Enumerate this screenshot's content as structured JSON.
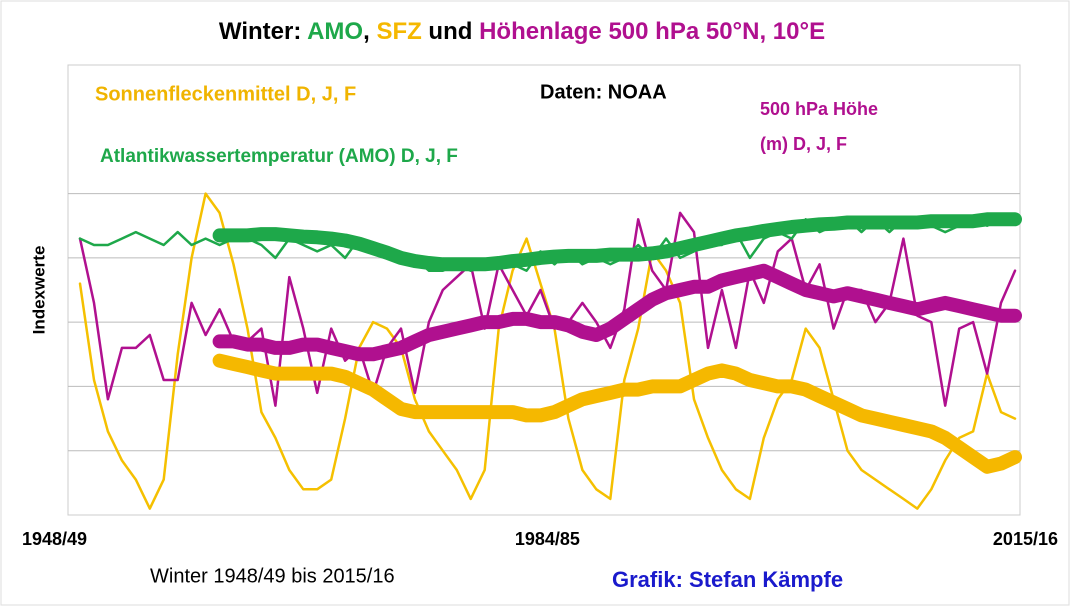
{
  "chart_data": {
    "type": "line",
    "title_parts": [
      {
        "text": "Winter: ",
        "color": "#000000"
      },
      {
        "text": "AMO",
        "color": "#1ea84a"
      },
      {
        "text": ", ",
        "color": "#000000"
      },
      {
        "text": "SFZ",
        "color": "#f5b800"
      },
      {
        "text": " und ",
        "color": "#000000"
      },
      {
        "text": "Höhenlage 500 hPa 50°N, 10°E",
        "color": "#b0108f"
      }
    ],
    "annotations": [
      {
        "text": "Sonnenfleckenmittel D, J, F",
        "color": "#f0b400"
      },
      {
        "text": "Daten: NOAA",
        "color": "#000000"
      },
      {
        "text": "500 hPa Höhe",
        "color": "#b0108f"
      },
      {
        "text": "(m) D, J, F",
        "color": "#b0108f"
      },
      {
        "text": "Atlantikwassertemperatur (AMO) D, J, F",
        "color": "#1ea84a"
      }
    ],
    "y_label": "Indexwerte",
    "x_label": "Winter 1948/49 bis 2015/16",
    "credit": "Grafik: Stefan Kämpfe",
    "categories": [
      "1948/49",
      null,
      null,
      null,
      null,
      null,
      null,
      null,
      null,
      null,
      null,
      null,
      null,
      null,
      null,
      null,
      null,
      null,
      null,
      null,
      null,
      null,
      null,
      null,
      null,
      null,
      null,
      null,
      null,
      null,
      null,
      null,
      null,
      null,
      null,
      null,
      "1984/85",
      null,
      null,
      null,
      null,
      null,
      null,
      null,
      null,
      null,
      null,
      null,
      null,
      null,
      null,
      null,
      null,
      null,
      null,
      null,
      null,
      null,
      null,
      null,
      null,
      null,
      null,
      null,
      null,
      null,
      null,
      "2015/16"
    ],
    "ylim": [
      0,
      7
    ],
    "grid_lines": [
      1,
      2,
      3,
      4,
      5
    ],
    "series": [
      {
        "color": "#f5c000",
        "line_width": 2.5,
        "values": [
          3.6,
          2.1,
          1.3,
          0.85,
          0.55,
          0.1,
          0.55,
          2.5,
          4.0,
          5.0,
          4.7,
          3.9,
          2.9,
          1.6,
          1.2,
          0.7,
          0.4,
          0.4,
          0.55,
          1.5,
          2.6,
          3.0,
          2.9,
          2.6,
          1.8,
          1.3,
          1.0,
          0.7,
          0.25,
          0.7,
          2.9,
          3.8,
          4.3,
          3.6,
          2.9,
          1.5,
          0.7,
          0.4,
          0.25,
          2.1,
          2.9,
          4.1,
          3.8,
          3.3,
          1.8,
          1.2,
          0.7,
          0.4,
          0.25,
          1.2,
          1.8,
          2.1,
          2.9,
          2.6,
          1.8,
          1.0,
          0.7,
          0.55,
          0.4,
          0.25,
          0.1,
          0.4,
          0.85,
          1.2,
          1.3,
          2.2,
          1.6,
          1.5
        ]
      },
      {
        "color": "#b0108f",
        "line_width": 2.5,
        "values": [
          4.3,
          3.3,
          1.8,
          2.6,
          2.6,
          2.8,
          2.1,
          2.1,
          3.3,
          2.8,
          3.2,
          2.7,
          2.7,
          2.9,
          1.7,
          3.7,
          2.9,
          1.9,
          2.9,
          2.4,
          2.6,
          1.9,
          2.6,
          2.9,
          1.9,
          3.0,
          3.5,
          3.7,
          3.9,
          2.9,
          3.9,
          3.5,
          3.1,
          3.5,
          2.9,
          3.0,
          3.3,
          3.0,
          2.6,
          3.2,
          4.6,
          3.8,
          3.5,
          4.7,
          4.4,
          2.6,
          3.5,
          2.6,
          3.8,
          3.3,
          4.1,
          4.3,
          3.5,
          3.9,
          2.9,
          3.5,
          3.5,
          3.0,
          3.3,
          4.3,
          3.1,
          3.0,
          1.7,
          2.9,
          3.0,
          2.2,
          3.3,
          3.8
        ]
      },
      {
        "color": "#1ea84a",
        "line_width": 2.5,
        "values": [
          4.3,
          4.2,
          4.2,
          4.3,
          4.4,
          4.3,
          4.2,
          4.4,
          4.2,
          4.3,
          4.2,
          4.3,
          4.3,
          4.2,
          4.0,
          4.3,
          4.2,
          4.1,
          4.2,
          4.0,
          4.3,
          4.2,
          4.1,
          4.0,
          4.0,
          3.8,
          3.8,
          3.9,
          3.8,
          3.9,
          4.0,
          3.9,
          3.8,
          4.1,
          3.9,
          4.1,
          3.9,
          4.0,
          3.9,
          4.0,
          4.2,
          4.0,
          4.3,
          4.0,
          4.1,
          4.2,
          4.2,
          4.4,
          4.0,
          4.3,
          4.4,
          4.3,
          4.6,
          4.4,
          4.5,
          4.6,
          4.4,
          4.6,
          4.4,
          4.6,
          4.5,
          4.5,
          4.4,
          4.5,
          4.6,
          4.5,
          4.6,
          4.6
        ]
      },
      {
        "color": "#f5b800",
        "line_width": 14,
        "values": [
          null,
          null,
          null,
          null,
          null,
          null,
          null,
          null,
          null,
          null,
          2.4,
          2.35,
          2.3,
          2.25,
          2.2,
          2.2,
          2.2,
          2.2,
          2.2,
          2.15,
          2.05,
          1.95,
          1.8,
          1.65,
          1.6,
          1.6,
          1.6,
          1.6,
          1.6,
          1.6,
          1.6,
          1.6,
          1.55,
          1.55,
          1.6,
          1.7,
          1.8,
          1.85,
          1.9,
          1.95,
          1.95,
          2.0,
          2.0,
          2.0,
          2.1,
          2.2,
          2.25,
          2.2,
          2.1,
          2.05,
          2.0,
          2.0,
          1.95,
          1.85,
          1.75,
          1.65,
          1.55,
          1.5,
          1.45,
          1.4,
          1.35,
          1.3,
          1.2,
          1.05,
          0.9,
          0.75,
          0.8,
          0.9
        ]
      },
      {
        "color": "#b0108f",
        "line_width": 14,
        "values": [
          null,
          null,
          null,
          null,
          null,
          null,
          null,
          null,
          null,
          null,
          2.7,
          2.7,
          2.65,
          2.65,
          2.6,
          2.6,
          2.65,
          2.65,
          2.6,
          2.55,
          2.5,
          2.5,
          2.55,
          2.6,
          2.7,
          2.8,
          2.85,
          2.9,
          2.95,
          3.0,
          3.0,
          3.05,
          3.05,
          3.0,
          3.0,
          2.95,
          2.85,
          2.8,
          2.9,
          3.05,
          3.2,
          3.35,
          3.45,
          3.5,
          3.55,
          3.55,
          3.65,
          3.7,
          3.75,
          3.8,
          3.7,
          3.6,
          3.5,
          3.45,
          3.4,
          3.45,
          3.4,
          3.35,
          3.3,
          3.25,
          3.2,
          3.25,
          3.3,
          3.25,
          3.2,
          3.15,
          3.1,
          3.1
        ]
      },
      {
        "color": "#1ea84a",
        "line_width": 14,
        "values": [
          null,
          null,
          null,
          null,
          null,
          null,
          null,
          null,
          null,
          null,
          4.35,
          4.35,
          4.35,
          4.37,
          4.37,
          4.35,
          4.33,
          4.32,
          4.3,
          4.27,
          4.22,
          4.15,
          4.08,
          4.0,
          3.95,
          3.92,
          3.9,
          3.9,
          3.9,
          3.9,
          3.92,
          3.95,
          3.97,
          4.0,
          4.02,
          4.03,
          4.03,
          4.03,
          4.05,
          4.05,
          4.05,
          4.07,
          4.1,
          4.15,
          4.2,
          4.25,
          4.3,
          4.35,
          4.38,
          4.42,
          4.45,
          4.48,
          4.5,
          4.52,
          4.53,
          4.55,
          4.55,
          4.55,
          4.55,
          4.55,
          4.55,
          4.57,
          4.57,
          4.57,
          4.57,
          4.6,
          4.6,
          4.6
        ]
      }
    ]
  }
}
